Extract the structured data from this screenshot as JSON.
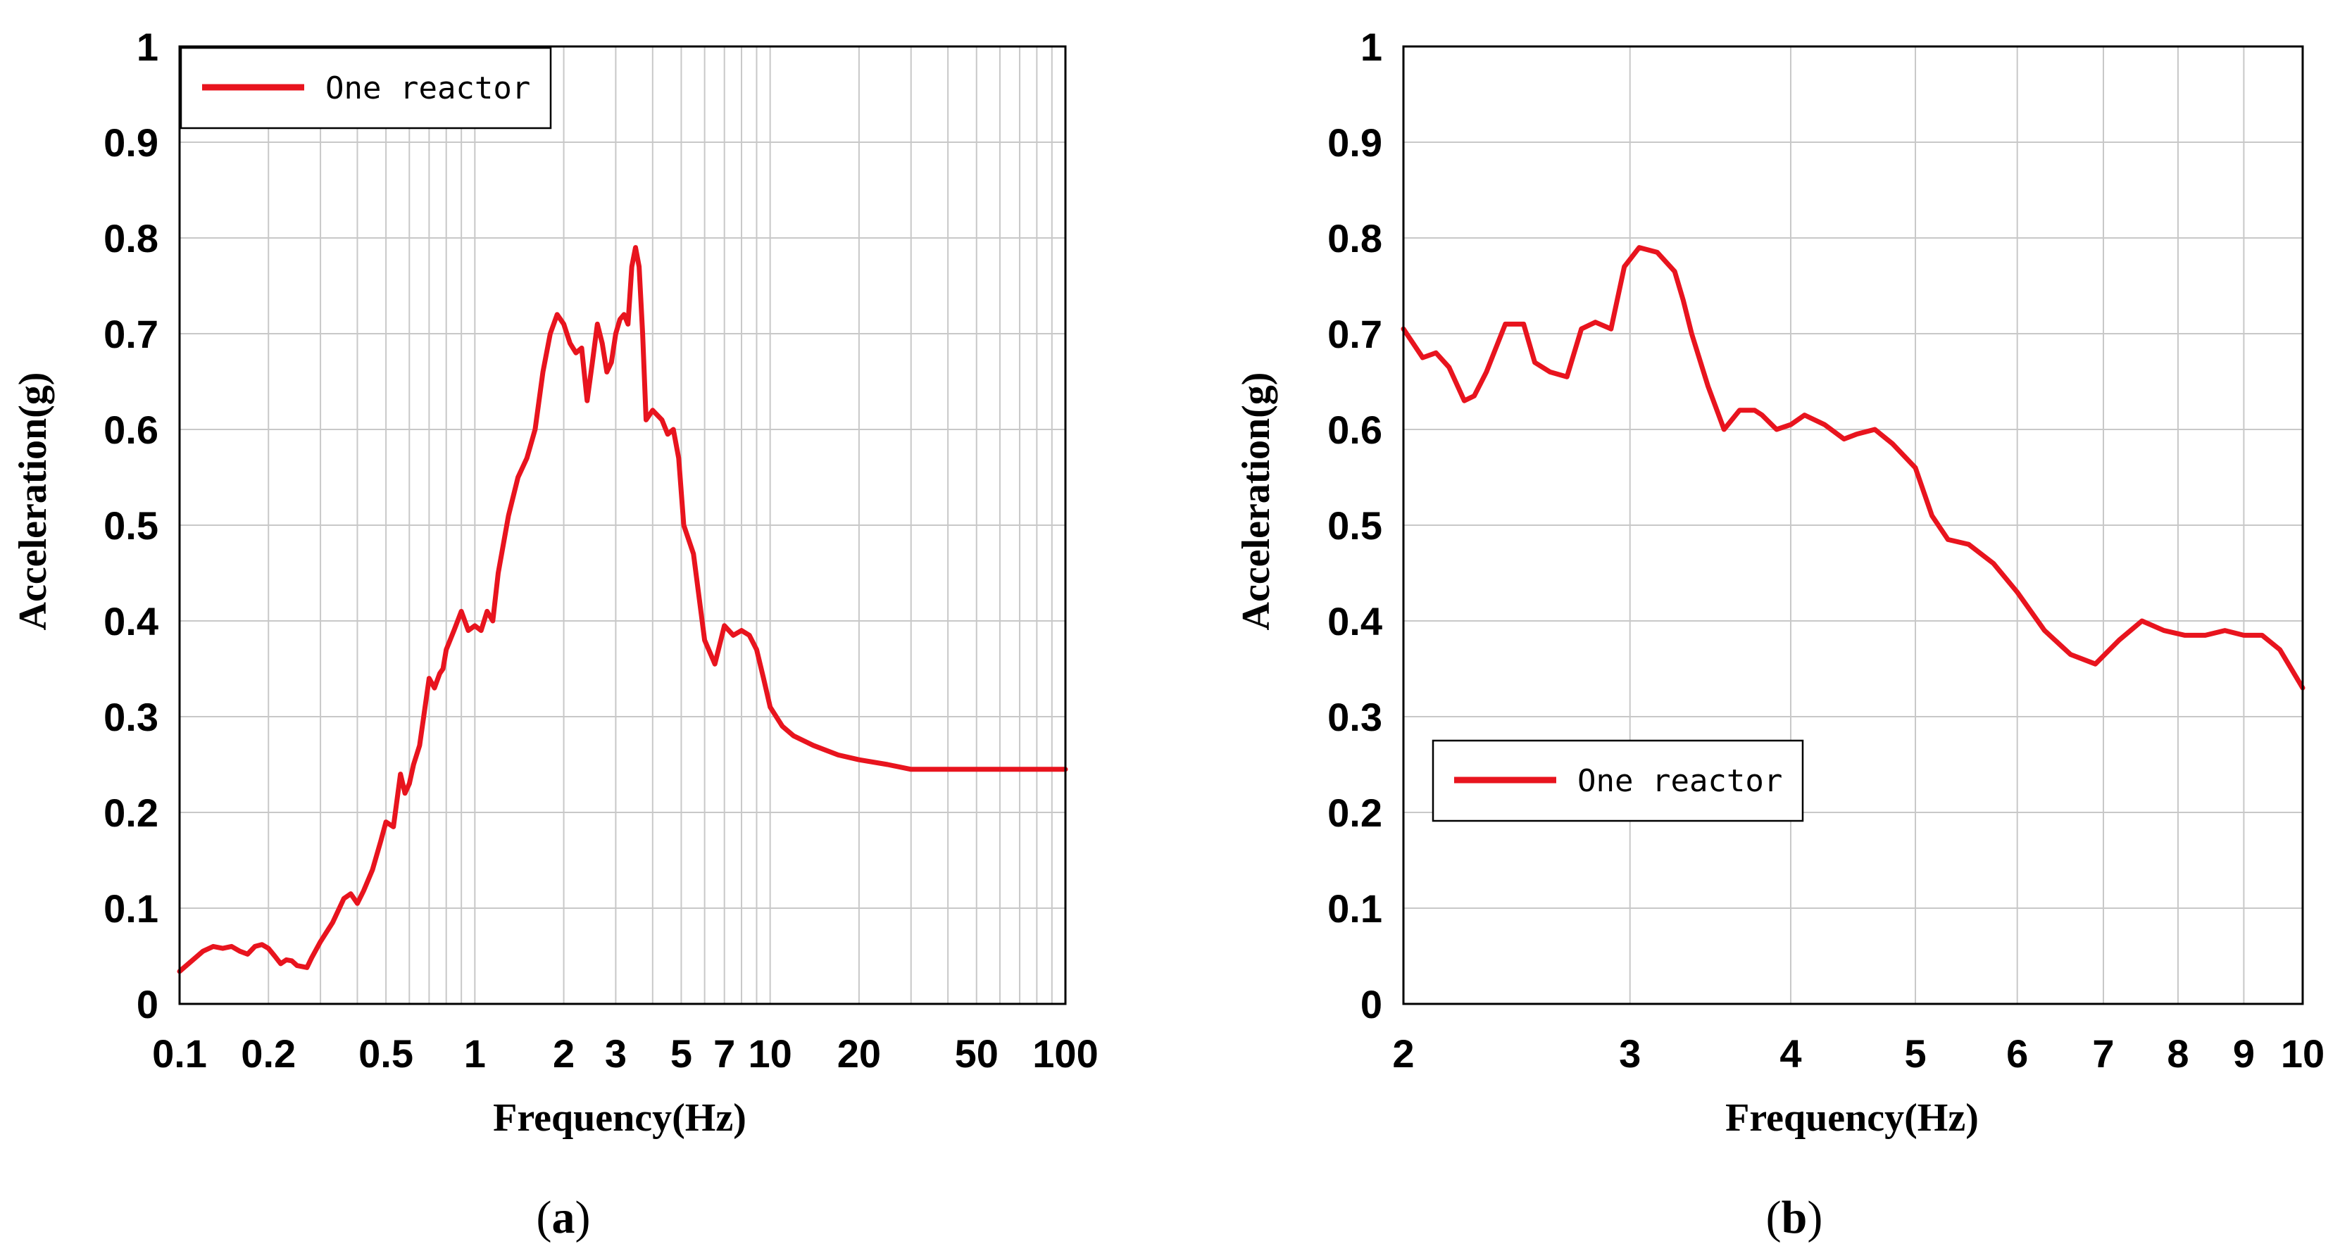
{
  "chart_data": [
    {
      "type": "line",
      "panel_label": "a",
      "xscale": "log",
      "xlabel": "Frequency(Hz)",
      "ylabel": "Acceleration(g)",
      "xlim": [
        0.1,
        100
      ],
      "ylim": [
        0,
        1
      ],
      "x_tick_labels": [
        "0.1",
        "0.2",
        "0.5",
        "1",
        "2",
        "3",
        "5",
        "7",
        "10",
        "20",
        "50",
        "100"
      ],
      "y_tick_labels": [
        "0",
        "0.1",
        "0.2",
        "0.3",
        "0.4",
        "0.5",
        "0.6",
        "0.7",
        "0.8",
        "0.9",
        "1"
      ],
      "grid": true,
      "legend_position": "top-left",
      "series": [
        {
          "name": "One reactor",
          "color": "#e8141e",
          "x": [
            0.1,
            0.11,
            0.12,
            0.13,
            0.14,
            0.15,
            0.16,
            0.17,
            0.18,
            0.19,
            0.2,
            0.21,
            0.22,
            0.23,
            0.24,
            0.25,
            0.27,
            0.28,
            0.3,
            0.33,
            0.36,
            0.38,
            0.4,
            0.42,
            0.45,
            0.48,
            0.5,
            0.53,
            0.56,
            0.58,
            0.6,
            0.62,
            0.65,
            0.7,
            0.73,
            0.76,
            0.78,
            0.8,
            0.85,
            0.9,
            0.95,
            1.0,
            1.05,
            1.1,
            1.15,
            1.2,
            1.3,
            1.4,
            1.5,
            1.6,
            1.7,
            1.8,
            1.9,
            2.0,
            2.1,
            2.2,
            2.3,
            2.4,
            2.5,
            2.6,
            2.7,
            2.8,
            2.9,
            3.0,
            3.1,
            3.2,
            3.3,
            3.4,
            3.5,
            3.6,
            3.7,
            3.8,
            4.0,
            4.3,
            4.5,
            4.7,
            4.9,
            5.1,
            5.5,
            6.0,
            6.5,
            7.0,
            7.5,
            8.0,
            8.5,
            9.0,
            9.5,
            10.0,
            11.0,
            12.0,
            14.0,
            17.0,
            20.0,
            25.0,
            30.0,
            40.0,
            50.0,
            70.0,
            100.0
          ],
          "y": [
            0.034,
            0.045,
            0.055,
            0.06,
            0.058,
            0.06,
            0.055,
            0.052,
            0.06,
            0.062,
            0.058,
            0.05,
            0.042,
            0.046,
            0.045,
            0.04,
            0.038,
            0.048,
            0.065,
            0.085,
            0.11,
            0.115,
            0.105,
            0.118,
            0.14,
            0.17,
            0.19,
            0.185,
            0.24,
            0.22,
            0.23,
            0.25,
            0.27,
            0.34,
            0.33,
            0.345,
            0.35,
            0.37,
            0.39,
            0.41,
            0.39,
            0.395,
            0.39,
            0.41,
            0.4,
            0.45,
            0.51,
            0.55,
            0.57,
            0.6,
            0.66,
            0.7,
            0.72,
            0.71,
            0.69,
            0.68,
            0.685,
            0.63,
            0.67,
            0.71,
            0.69,
            0.66,
            0.67,
            0.7,
            0.715,
            0.72,
            0.71,
            0.77,
            0.79,
            0.77,
            0.7,
            0.61,
            0.62,
            0.61,
            0.595,
            0.6,
            0.57,
            0.5,
            0.47,
            0.38,
            0.355,
            0.395,
            0.385,
            0.39,
            0.385,
            0.37,
            0.34,
            0.31,
            0.29,
            0.28,
            0.27,
            0.26,
            0.255,
            0.25,
            0.245,
            0.245,
            0.245,
            0.245,
            0.245
          ]
        }
      ]
    },
    {
      "type": "line",
      "panel_label": "b",
      "xscale": "log",
      "xlabel": "Frequency(Hz)",
      "ylabel": "Acceleration(g)",
      "xlim": [
        2,
        10
      ],
      "ylim": [
        0,
        1
      ],
      "x_tick_labels": [
        "2",
        "3",
        "4",
        "5",
        "6",
        "7",
        "8",
        "9",
        "10"
      ],
      "y_tick_labels": [
        "0",
        "0.1",
        "0.2",
        "0.3",
        "0.4",
        "0.5",
        "0.6",
        "0.7",
        "0.8",
        "0.9",
        "1"
      ],
      "grid": true,
      "legend_position": "center-left",
      "series": [
        {
          "name": "One reactor",
          "color": "#e8141e",
          "x": [
            2.0,
            2.07,
            2.12,
            2.17,
            2.23,
            2.27,
            2.32,
            2.4,
            2.48,
            2.53,
            2.6,
            2.68,
            2.75,
            2.82,
            2.9,
            2.97,
            3.05,
            3.15,
            3.25,
            3.3,
            3.35,
            3.45,
            3.55,
            3.65,
            3.75,
            3.8,
            3.9,
            4.0,
            4.1,
            4.25,
            4.4,
            4.5,
            4.65,
            4.8,
            5.0,
            5.15,
            5.3,
            5.5,
            5.75,
            6.0,
            6.3,
            6.6,
            6.9,
            7.2,
            7.5,
            7.8,
            8.1,
            8.4,
            8.7,
            9.0,
            9.3,
            9.6,
            10.0
          ],
          "y": [
            0.705,
            0.675,
            0.68,
            0.665,
            0.63,
            0.635,
            0.66,
            0.71,
            0.71,
            0.67,
            0.66,
            0.655,
            0.705,
            0.712,
            0.705,
            0.77,
            0.79,
            0.785,
            0.765,
            0.735,
            0.7,
            0.645,
            0.6,
            0.62,
            0.62,
            0.615,
            0.6,
            0.605,
            0.615,
            0.605,
            0.59,
            0.595,
            0.6,
            0.585,
            0.56,
            0.51,
            0.485,
            0.48,
            0.46,
            0.43,
            0.39,
            0.365,
            0.355,
            0.38,
            0.4,
            0.39,
            0.385,
            0.385,
            0.39,
            0.385,
            0.385,
            0.37,
            0.33
          ]
        }
      ]
    }
  ],
  "captions": [
    {
      "open": "(",
      "letter": "a",
      "close": ")"
    },
    {
      "open": "(",
      "letter": "b",
      "close": ")"
    }
  ]
}
